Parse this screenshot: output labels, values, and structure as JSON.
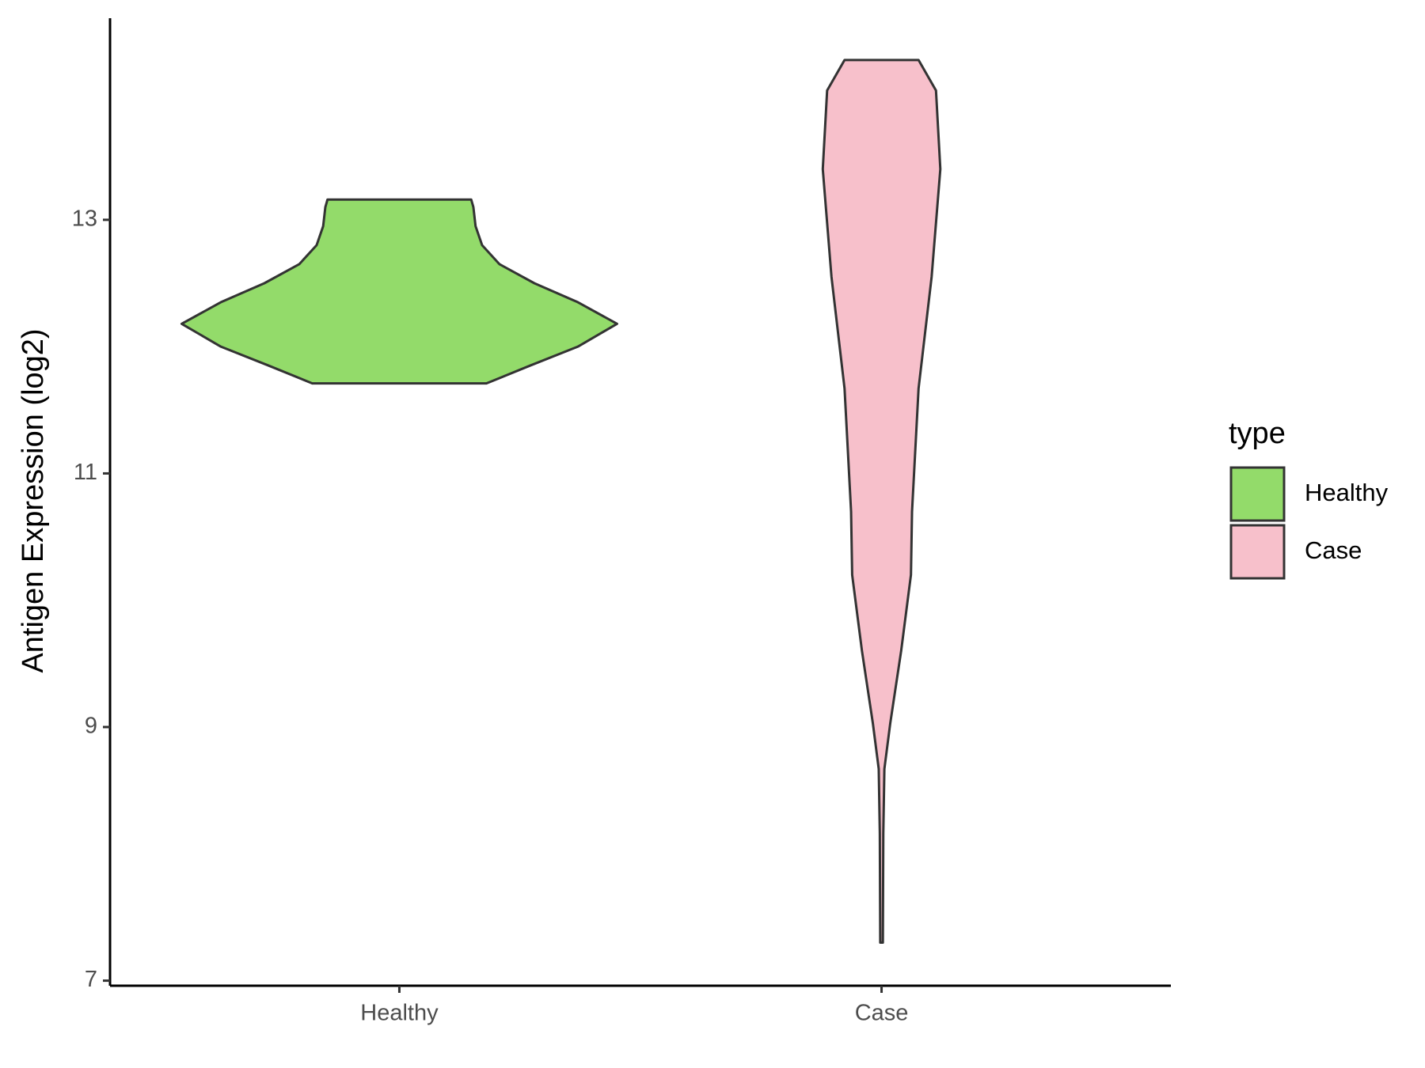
{
  "chart_data": {
    "type": "violin",
    "y_label": "Antigen Expression (log2)",
    "categories": [
      "Healthy",
      "Case"
    ],
    "legend_title": "type",
    "ylim": [
      6.96,
      14.59
    ],
    "yticks": [
      7,
      9,
      11,
      13
    ],
    "series": [
      {
        "name": "Healthy",
        "color": "#93db6a",
        "y": [
          13.16,
          13.1,
          12.95,
          12.8,
          12.65,
          12.5,
          12.35,
          12.18,
          12.0,
          11.85,
          11.71
        ],
        "density": [
          0.33,
          0.34,
          0.35,
          0.38,
          0.46,
          0.62,
          0.82,
          1.0,
          0.82,
          0.6,
          0.4
        ]
      },
      {
        "name": "Case",
        "color": "#f7c0cb",
        "y": [
          14.26,
          14.02,
          13.4,
          12.55,
          11.67,
          10.7,
          10.2,
          9.6,
          9.03,
          8.67,
          8.16,
          7.3
        ],
        "density": [
          0.17,
          0.25,
          0.27,
          0.23,
          0.17,
          0.14,
          0.135,
          0.09,
          0.04,
          0.013,
          0.008,
          0.006
        ]
      }
    ]
  }
}
